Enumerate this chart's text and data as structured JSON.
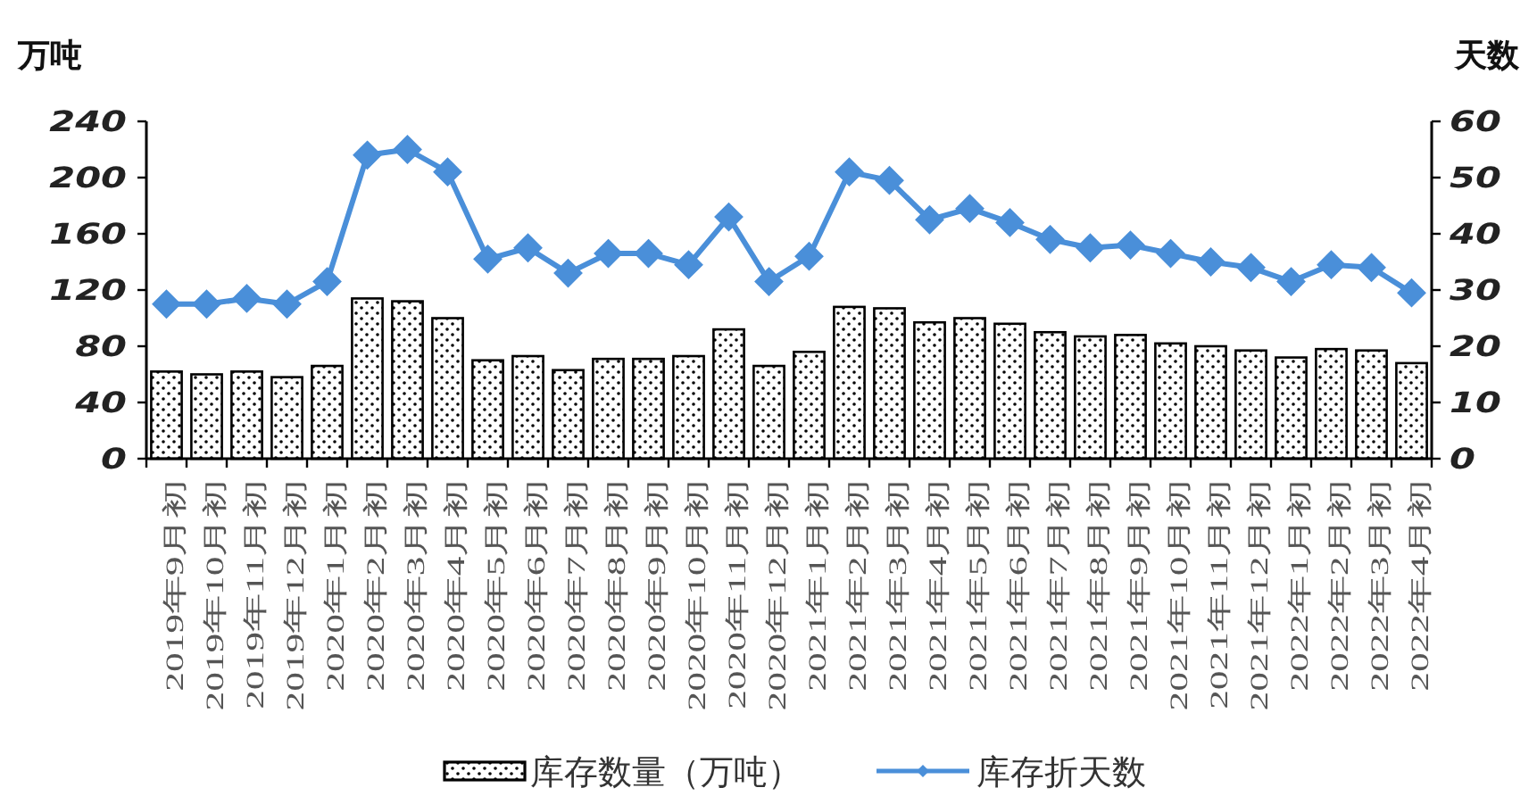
{
  "chart_data": {
    "type": "bar",
    "ylabel": "万吨",
    "y2label": "天数",
    "categories": [
      "2019年9月初",
      "2019年10月初",
      "2019年11月初",
      "2019年12月初",
      "2020年1月初",
      "2020年2月初",
      "2020年3月初",
      "2020年4月初",
      "2020年5月初",
      "2020年6月初",
      "2020年7月初",
      "2020年8月初",
      "2020年9月初",
      "2020年10月初",
      "2020年11月初",
      "2020年12月初",
      "2021年1月初",
      "2021年2月初",
      "2021年3月初",
      "2021年4月初",
      "2021年5月初",
      "2021年6月初",
      "2021年7月初",
      "2021年8月初",
      "2021年9月初",
      "2021年10月初",
      "2021年11月初",
      "2021年12月初",
      "2022年1月初",
      "2022年2月初",
      "2022年3月初",
      "2022年4月初"
    ],
    "series": [
      {
        "name": "库存数量（万吨）",
        "color": "#000000",
        "values": [
          62,
          60,
          62,
          58,
          66,
          114,
          112,
          100,
          70,
          73,
          63,
          71,
          71,
          73,
          92,
          66,
          76,
          108,
          107,
          97,
          100,
          96,
          90,
          87,
          88,
          82,
          80,
          77,
          72,
          78,
          77,
          68
        ]
      },
      {
        "name": "库存折天数",
        "type": "line",
        "axis": "y2",
        "color": "#4a8fd9",
        "values": [
          27.5,
          27.5,
          28.5,
          27.5,
          31.5,
          54,
          55,
          51,
          35.5,
          37.5,
          33,
          36.5,
          36.5,
          34.5,
          43,
          31.5,
          36,
          51,
          49.5,
          42.5,
          44.5,
          42,
          39,
          37.5,
          38,
          36.5,
          35,
          34,
          31.5,
          34.5,
          34,
          29.5
        ]
      }
    ],
    "ylim": [
      0,
      240
    ],
    "yticks": [
      0,
      40,
      80,
      120,
      160,
      200,
      240
    ],
    "y2lim": [
      0,
      60
    ],
    "y2ticks": [
      0,
      10,
      20,
      30,
      40,
      50,
      60
    ],
    "marker": "diamond",
    "grid": false,
    "legend": "bottom"
  }
}
